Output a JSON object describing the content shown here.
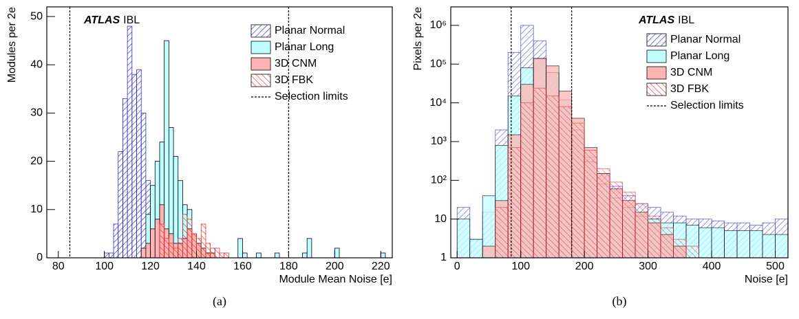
{
  "chart_data": [
    {
      "type": "histogram",
      "caption": "(a)",
      "xlabel": "Module Mean Noise [e]",
      "ylabel": "Modules per 2e",
      "atlas_label": "ATLAS",
      "atlas_sub": "IBL",
      "selection_label": "Selection limits",
      "selection_limits": [
        85,
        180
      ],
      "legend": "upper right",
      "log_y": false,
      "xlim": [
        75,
        225
      ],
      "xticks": [
        80,
        100,
        120,
        140,
        160,
        180,
        200,
        220
      ],
      "ylim": [
        0,
        52
      ],
      "yticks": [
        0,
        10,
        20,
        30,
        40,
        50
      ],
      "bins": [
        100,
        102,
        104,
        106,
        108,
        110,
        112,
        114,
        116,
        118,
        120,
        122,
        124,
        126,
        128,
        130,
        132,
        134,
        136,
        138,
        140,
        142,
        144,
        146,
        148,
        150,
        152,
        154,
        156,
        158,
        160,
        162,
        164,
        166,
        168,
        170,
        172,
        174,
        176,
        178,
        180,
        182,
        184,
        186,
        188,
        190,
        192,
        194,
        196,
        198,
        200,
        202,
        204,
        206,
        208,
        210,
        212,
        214,
        216,
        218,
        220,
        222
      ],
      "series": [
        {
          "name": "Planar Normal",
          "color": "#2b2bc8",
          "style": "hatch",
          "values": [
            1,
            1,
            7,
            22,
            33,
            48,
            38,
            39,
            30,
            16,
            10,
            10,
            3,
            2,
            1,
            0,
            0,
            0,
            0,
            0,
            0,
            0,
            0,
            0,
            0,
            0,
            0,
            0,
            0,
            0,
            0,
            0,
            0,
            0,
            0,
            0,
            0,
            0,
            0,
            0,
            0,
            0,
            0,
            0,
            0,
            0,
            0,
            0,
            0,
            0,
            0,
            0,
            0,
            0,
            0,
            0,
            0,
            0,
            0,
            0,
            0
          ]
        },
        {
          "name": "Planar Long",
          "color": "#c0ffff",
          "style": "fill",
          "values": [
            0,
            0,
            0,
            0,
            0,
            0,
            0,
            0,
            0,
            9,
            15,
            20,
            24,
            45,
            27,
            21,
            16,
            11,
            10,
            5,
            3,
            2,
            1,
            0,
            0,
            0,
            0,
            0,
            0,
            4,
            1,
            0,
            0,
            1,
            0,
            0,
            0,
            1,
            0,
            0,
            0,
            0,
            0,
            1,
            4,
            0,
            0,
            0,
            0,
            0,
            2,
            0,
            0,
            0,
            0,
            0,
            0,
            0,
            0,
            0,
            1
          ]
        },
        {
          "name": "3D CNM",
          "color": "#ffb3b3",
          "style": "fill",
          "values": [
            0,
            0,
            0,
            0,
            0,
            0,
            0,
            0,
            2,
            3,
            6,
            8,
            11,
            6,
            5,
            3,
            3,
            4,
            6,
            5,
            3,
            2,
            1,
            1,
            0,
            0,
            0,
            0,
            0,
            0,
            0,
            0,
            0,
            0,
            0,
            0,
            0,
            0,
            0,
            0,
            0,
            0,
            0,
            0,
            0,
            0,
            0,
            0,
            0,
            0,
            0,
            0,
            0,
            0,
            0,
            0,
            0,
            0,
            0,
            0,
            0
          ]
        },
        {
          "name": "3D FBK",
          "color": "#e83030",
          "style": "hatch",
          "values": [
            0,
            0,
            0,
            0,
            0,
            0,
            0,
            0,
            0,
            0,
            0,
            0,
            7,
            4,
            3,
            2,
            4,
            9,
            8,
            5,
            4,
            7,
            3,
            2,
            2,
            1,
            1,
            0,
            0,
            0,
            0,
            0,
            0,
            0,
            0,
            0,
            0,
            0,
            0,
            0,
            0,
            0,
            0,
            0,
            0,
            0,
            0,
            0,
            0,
            0,
            0,
            0,
            0,
            0,
            0,
            0,
            0,
            0,
            0,
            0,
            0
          ]
        }
      ]
    },
    {
      "type": "histogram",
      "caption": "(b)",
      "xlabel": "Noise [e]",
      "ylabel": "Pixels per 2e",
      "atlas_label": "ATLAS",
      "atlas_sub": "IBL",
      "selection_label": "Selection limits",
      "selection_limits": [
        85,
        180
      ],
      "legend": "upper right",
      "log_y": true,
      "xlim": [
        -10,
        520
      ],
      "xticks": [
        0,
        100,
        200,
        300,
        400,
        500
      ],
      "ylim": [
        1,
        3000000
      ],
      "yticks": [
        1,
        10,
        {
          "value": 100,
          "label": "10²"
        },
        {
          "value": 1000,
          "label": "10³"
        },
        {
          "value": 10000,
          "label": "10⁴"
        },
        {
          "value": 100000,
          "label": "10⁵"
        },
        {
          "value": 1000000,
          "label": "10⁶"
        }
      ],
      "bins": [
        0,
        20,
        40,
        60,
        80,
        100,
        120,
        140,
        160,
        180,
        200,
        220,
        240,
        260,
        280,
        300,
        320,
        340,
        360,
        380,
        400,
        420,
        440,
        460,
        480,
        500,
        520
      ],
      "series": [
        {
          "name": "Planar Normal",
          "color": "#2b2bc8",
          "style": "hatch",
          "values": [
            20,
            3,
            15,
            2000,
            200000,
            1000000,
            400000,
            60000,
            8000,
            1500,
            400,
            150,
            70,
            40,
            25,
            20,
            15,
            12,
            10,
            10,
            9,
            8,
            8,
            7,
            8,
            10
          ]
        },
        {
          "name": "Planar Long",
          "color": "#c0ffff",
          "style": "fill",
          "values": [
            10,
            3,
            40,
            800,
            15000,
            80000,
            140000,
            60000,
            12000,
            2000,
            300,
            80,
            35,
            20,
            12,
            10,
            8,
            8,
            7,
            6,
            6,
            5,
            5,
            5,
            4,
            4
          ]
        },
        {
          "name": "3D CNM",
          "color": "#ffb3b3",
          "style": "fill",
          "values": [
            null,
            null,
            2,
            30,
            1500,
            30000,
            140000,
            90000,
            20000,
            4000,
            700,
            150,
            60,
            30,
            15,
            8,
            4,
            2,
            null,
            null,
            null,
            null,
            null,
            null,
            null,
            null
          ]
        },
        {
          "name": "3D FBK",
          "color": "#e83030",
          "style": "hatch",
          "values": [
            null,
            null,
            null,
            20,
            700,
            10000,
            24000,
            15000,
            8000,
            3000,
            600,
            200,
            90,
            50,
            25,
            12,
            6,
            3,
            2,
            null,
            null,
            null,
            null,
            null,
            null,
            null
          ]
        }
      ]
    }
  ]
}
